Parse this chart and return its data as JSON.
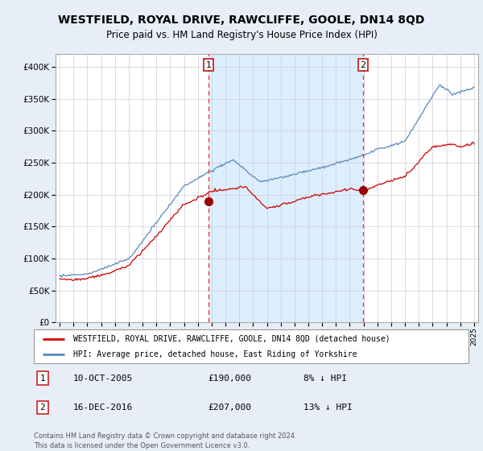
{
  "title": "WESTFIELD, ROYAL DRIVE, RAWCLIFFE, GOOLE, DN14 8QD",
  "subtitle": "Price paid vs. HM Land Registry's House Price Index (HPI)",
  "ylim": [
    0,
    420000
  ],
  "yticks": [
    0,
    50000,
    100000,
    150000,
    200000,
    250000,
    300000,
    350000,
    400000
  ],
  "sale1": {
    "date_num": 2005.78,
    "price": 190000,
    "label": "1",
    "date_str": "10-OCT-2005",
    "pct": "8%"
  },
  "sale2": {
    "date_num": 2016.96,
    "price": 207000,
    "label": "2",
    "date_str": "16-DEC-2016",
    "pct": "13%"
  },
  "red_line_color": "#cc0000",
  "blue_line_color": "#5588bb",
  "shade_color": "#ddeeff",
  "dashed_line_color": "#dd4444",
  "legend_label1": "WESTFIELD, ROYAL DRIVE, RAWCLIFFE, GOOLE, DN14 8QD (detached house)",
  "legend_label2": "HPI: Average price, detached house, East Riding of Yorkshire",
  "footer1": "Contains HM Land Registry data © Crown copyright and database right 2024.",
  "footer2": "This data is licensed under the Open Government Licence v3.0.",
  "background_color": "#e8eef8",
  "plot_bg_color": "#ffffff"
}
